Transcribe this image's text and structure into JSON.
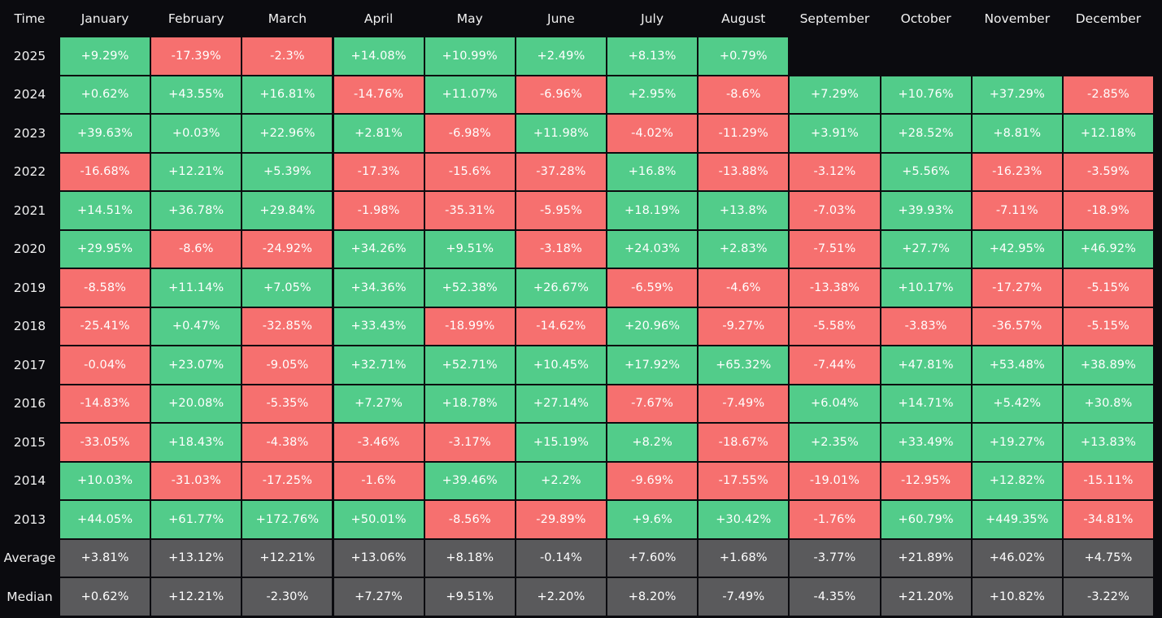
{
  "chart_data": {
    "type": "heatmap",
    "corner_label": "Time",
    "columns": [
      "January",
      "February",
      "March",
      "April",
      "May",
      "June",
      "July",
      "August",
      "September",
      "October",
      "November",
      "December"
    ],
    "rows": [
      {
        "label": "2025",
        "kind": "year",
        "values": [
          "+9.29%",
          "-17.39%",
          "-2.3%",
          "+14.08%",
          "+10.99%",
          "+2.49%",
          "+8.13%",
          "+0.79%",
          null,
          null,
          null,
          null
        ]
      },
      {
        "label": "2024",
        "kind": "year",
        "values": [
          "+0.62%",
          "+43.55%",
          "+16.81%",
          "-14.76%",
          "+11.07%",
          "-6.96%",
          "+2.95%",
          "-8.6%",
          "+7.29%",
          "+10.76%",
          "+37.29%",
          "-2.85%"
        ]
      },
      {
        "label": "2023",
        "kind": "year",
        "values": [
          "+39.63%",
          "+0.03%",
          "+22.96%",
          "+2.81%",
          "-6.98%",
          "+11.98%",
          "-4.02%",
          "-11.29%",
          "+3.91%",
          "+28.52%",
          "+8.81%",
          "+12.18%"
        ]
      },
      {
        "label": "2022",
        "kind": "year",
        "values": [
          "-16.68%",
          "+12.21%",
          "+5.39%",
          "-17.3%",
          "-15.6%",
          "-37.28%",
          "+16.8%",
          "-13.88%",
          "-3.12%",
          "+5.56%",
          "-16.23%",
          "-3.59%"
        ]
      },
      {
        "label": "2021",
        "kind": "year",
        "values": [
          "+14.51%",
          "+36.78%",
          "+29.84%",
          "-1.98%",
          "-35.31%",
          "-5.95%",
          "+18.19%",
          "+13.8%",
          "-7.03%",
          "+39.93%",
          "-7.11%",
          "-18.9%"
        ]
      },
      {
        "label": "2020",
        "kind": "year",
        "values": [
          "+29.95%",
          "-8.6%",
          "-24.92%",
          "+34.26%",
          "+9.51%",
          "-3.18%",
          "+24.03%",
          "+2.83%",
          "-7.51%",
          "+27.7%",
          "+42.95%",
          "+46.92%"
        ]
      },
      {
        "label": "2019",
        "kind": "year",
        "values": [
          "-8.58%",
          "+11.14%",
          "+7.05%",
          "+34.36%",
          "+52.38%",
          "+26.67%",
          "-6.59%",
          "-4.6%",
          "-13.38%",
          "+10.17%",
          "-17.27%",
          "-5.15%"
        ]
      },
      {
        "label": "2018",
        "kind": "year",
        "values": [
          "-25.41%",
          "+0.47%",
          "-32.85%",
          "+33.43%",
          "-18.99%",
          "-14.62%",
          "+20.96%",
          "-9.27%",
          "-5.58%",
          "-3.83%",
          "-36.57%",
          "-5.15%"
        ]
      },
      {
        "label": "2017",
        "kind": "year",
        "values": [
          "-0.04%",
          "+23.07%",
          "-9.05%",
          "+32.71%",
          "+52.71%",
          "+10.45%",
          "+17.92%",
          "+65.32%",
          "-7.44%",
          "+47.81%",
          "+53.48%",
          "+38.89%"
        ]
      },
      {
        "label": "2016",
        "kind": "year",
        "values": [
          "-14.83%",
          "+20.08%",
          "-5.35%",
          "+7.27%",
          "+18.78%",
          "+27.14%",
          "-7.67%",
          "-7.49%",
          "+6.04%",
          "+14.71%",
          "+5.42%",
          "+30.8%"
        ]
      },
      {
        "label": "2015",
        "kind": "year",
        "values": [
          "-33.05%",
          "+18.43%",
          "-4.38%",
          "-3.46%",
          "-3.17%",
          "+15.19%",
          "+8.2%",
          "-18.67%",
          "+2.35%",
          "+33.49%",
          "+19.27%",
          "+13.83%"
        ]
      },
      {
        "label": "2014",
        "kind": "year",
        "values": [
          "+10.03%",
          "-31.03%",
          "-17.25%",
          "-1.6%",
          "+39.46%",
          "+2.2%",
          "-9.69%",
          "-17.55%",
          "-19.01%",
          "-12.95%",
          "+12.82%",
          "-15.11%"
        ]
      },
      {
        "label": "2013",
        "kind": "year",
        "values": [
          "+44.05%",
          "+61.77%",
          "+172.76%",
          "+50.01%",
          "-8.56%",
          "-29.89%",
          "+9.6%",
          "+30.42%",
          "-1.76%",
          "+60.79%",
          "+449.35%",
          "-34.81%"
        ]
      },
      {
        "label": "Average",
        "kind": "summary",
        "values": [
          "+3.81%",
          "+13.12%",
          "+12.21%",
          "+13.06%",
          "+8.18%",
          "-0.14%",
          "+7.60%",
          "+1.68%",
          "-3.77%",
          "+21.89%",
          "+46.02%",
          "+4.75%"
        ]
      },
      {
        "label": "Median",
        "kind": "summary",
        "values": [
          "+0.62%",
          "+12.21%",
          "-2.30%",
          "+7.27%",
          "+9.51%",
          "+2.20%",
          "+8.20%",
          "-7.49%",
          "-4.35%",
          "+21.20%",
          "+10.82%",
          "-3.22%"
        ]
      }
    ],
    "colors": {
      "positive": "#52cc8a",
      "negative": "#f6706f",
      "summary": "#5a5a5c",
      "background": "#0b0b0f",
      "text": "#ffffff"
    }
  }
}
